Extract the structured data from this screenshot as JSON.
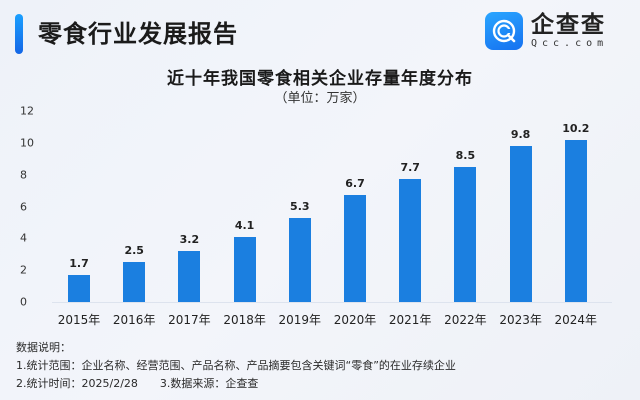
{
  "header": {
    "title": "零食行业发展报告",
    "accent_color": "#1677ff"
  },
  "logo": {
    "icon": "qcc-logo-icon",
    "name_cn": "企查查",
    "domain": "Qcc.com"
  },
  "chart_data": {
    "type": "bar",
    "title": "近十年我国零食相关企业存量年度分布",
    "subtitle": "（单位：万家）",
    "xlabel": "",
    "ylabel": "",
    "categories": [
      "2015年",
      "2016年",
      "2017年",
      "2018年",
      "2019年",
      "2020年",
      "2021年",
      "2022年",
      "2023年",
      "2024年"
    ],
    "values": [
      1.7,
      2.5,
      3.2,
      4.1,
      5.3,
      6.7,
      7.7,
      8.5,
      9.8,
      10.2
    ],
    "value_labels": [
      "1.7",
      "2.5",
      "3.2",
      "4.1",
      "5.3",
      "6.7",
      "7.7",
      "8.5",
      "9.8",
      "10.2"
    ],
    "yticks": [
      "0",
      "2",
      "4",
      "6",
      "8",
      "10",
      "12"
    ],
    "ylim": [
      0,
      12
    ],
    "grid": false,
    "legend": null,
    "bar_color": "#1b7fe0"
  },
  "notes": {
    "heading": "数据说明：",
    "line1": "1.统计范围：企业名称、经营范围、产品名称、产品摘要包含关键词“零食”的在业存续企业",
    "line2a": "2.统计时间：2025/2/28",
    "line2b": "3.数据来源：企查查"
  }
}
